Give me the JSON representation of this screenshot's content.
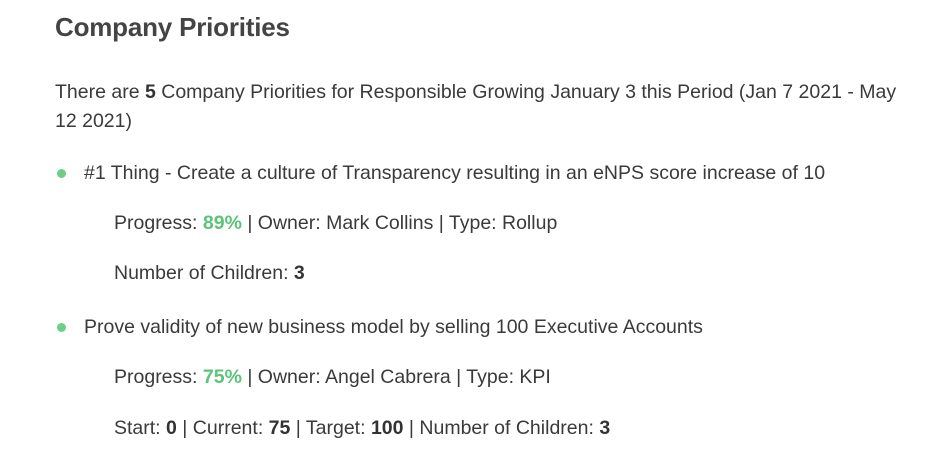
{
  "page": {
    "title": "Company Priorities",
    "intro": {
      "prefix": "There are ",
      "count": "5",
      "middle": " Company Priorities for Responsible Growing January 3 this Period (Jan 7 2021 - May 12 2021)"
    }
  },
  "colors": {
    "accent_green": "#5cc37a",
    "bullet_green": "#6ccf87"
  },
  "priorities": [
    {
      "title": "#1 Thing - Create a culture of Transparency resulting in an eNPS score increase of 10",
      "progress_label": "Progress: ",
      "progress": "89%",
      "owner_text": " | Owner: Mark Collins | Type: Rollup",
      "children_label": "Number of Children: ",
      "children": "3"
    },
    {
      "title": "Prove validity of new business model by selling 100 Executive Accounts",
      "progress_label": "Progress: ",
      "progress": "75%",
      "owner_text": " | Owner: Angel Cabrera | Type: KPI",
      "start_label": "Start: ",
      "start": "0",
      "current_label": " | Current: ",
      "current": "75",
      "target_label": " | Target: ",
      "target": "100",
      "children_label": " | Number of Children: ",
      "children": "3"
    }
  ]
}
